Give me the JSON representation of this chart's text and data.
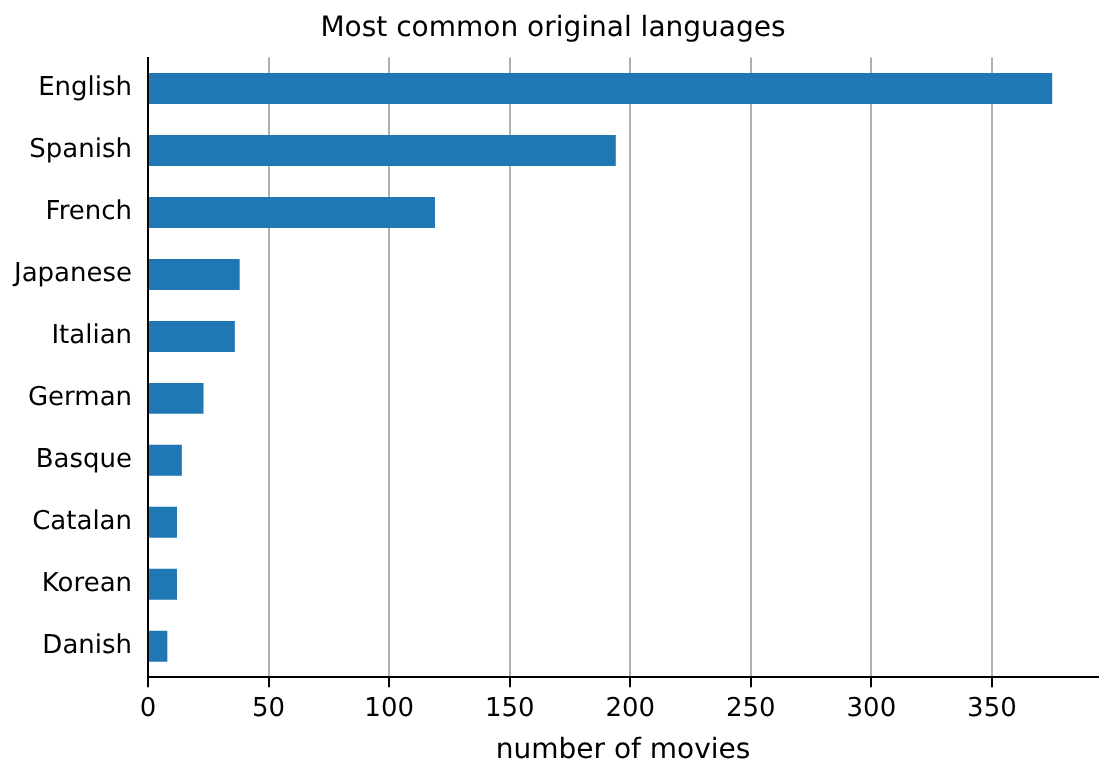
{
  "chart_data": {
    "type": "bar",
    "orientation": "horizontal",
    "title": "Most common original languages",
    "xlabel": "number of movies",
    "categories": [
      "English",
      "Spanish",
      "French",
      "Japanese",
      "Italian",
      "German",
      "Basque",
      "Catalan",
      "Korean",
      "Danish"
    ],
    "values": [
      375,
      194,
      119,
      38,
      36,
      23,
      14,
      12,
      12,
      8
    ],
    "color": "#1f77b4",
    "xlim": [
      0,
      394
    ],
    "xticks": [
      0,
      50,
      100,
      150,
      200,
      250,
      300,
      350
    ],
    "grid": "x",
    "legend": false
  }
}
